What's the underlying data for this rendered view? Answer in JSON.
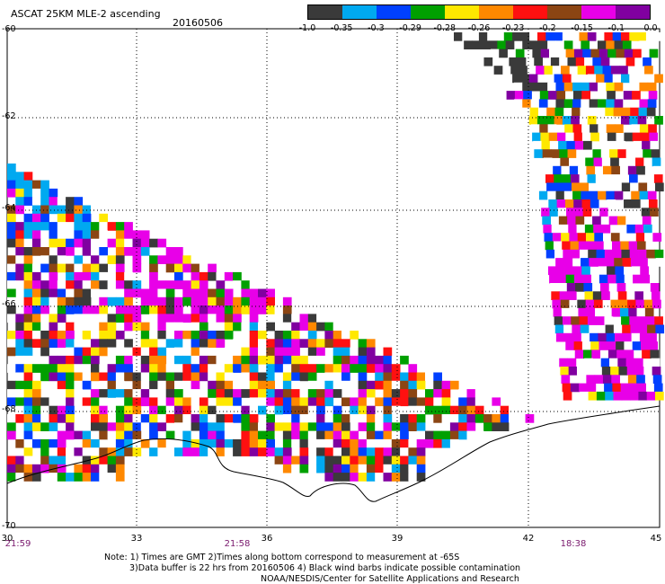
{
  "title": "ASCAT 25KM MLE-2 ascending",
  "date": "20160506",
  "colorbar": {
    "colors": [
      "#3a3a3a",
      "#00a9f0",
      "#0040ff",
      "#00a000",
      "#ffe800",
      "#ff8800",
      "#ff1010",
      "#8b4513",
      "#e800e8",
      "#8000a0"
    ],
    "labels": [
      "-1.0",
      "-0.35",
      "-0.3",
      "-0.29",
      "-0.28",
      "-0.26",
      "-0.23",
      "-0.2",
      "-0.15",
      "-0.1",
      "0.0"
    ]
  },
  "axes": {
    "lat_labels": [
      "-60",
      "-62",
      "-64",
      "-66",
      "-68",
      "-70"
    ],
    "lon_labels": [
      "30",
      "33",
      "36",
      "39",
      "42",
      "45"
    ],
    "time_labels": [
      "21:59",
      "21:58",
      "18:38"
    ]
  },
  "notes": [
    "Note: 1) Times are GMT 2)Times along bottom correspond to measurement at -65S",
    "3)Data buffer is 22 hrs from 20160506 4) Black wind barbs indicate possible contamination",
    "NOAA/NESDIS/Center for Satellite Applications and Research"
  ]
}
